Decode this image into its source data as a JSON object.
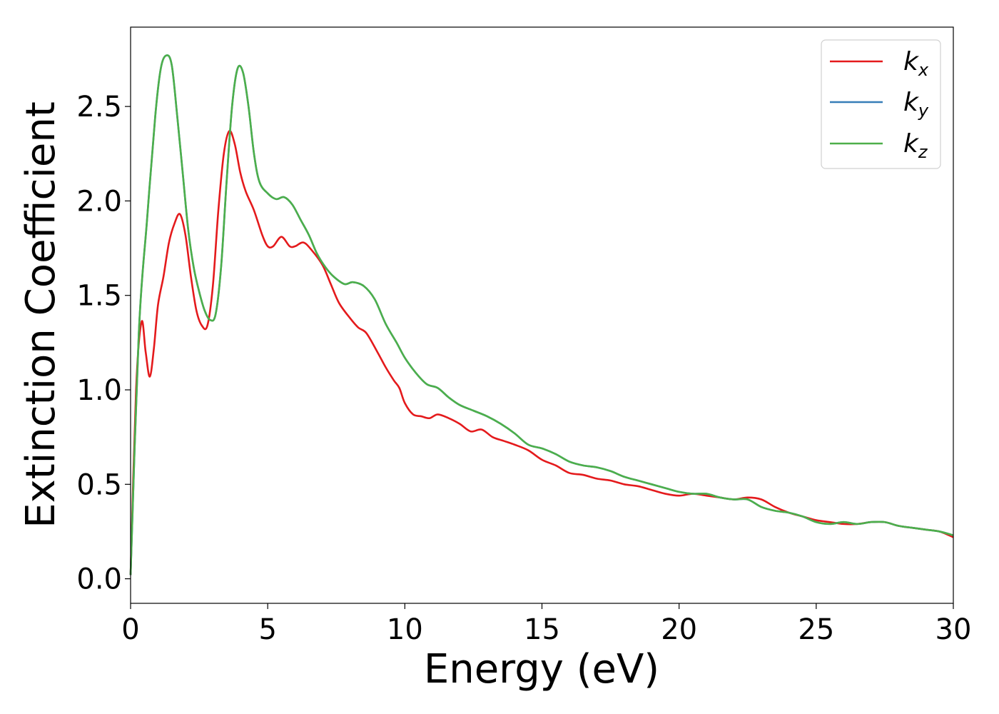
{
  "chart_data": {
    "type": "line",
    "title": "",
    "xlabel": "Energy (eV)",
    "ylabel": "Extinction Coefficient",
    "xlim": [
      0,
      30
    ],
    "ylim": [
      -0.13,
      2.92
    ],
    "xticks": [
      0,
      5,
      10,
      15,
      20,
      25,
      30
    ],
    "xtick_labels": [
      "0",
      "5",
      "10",
      "15",
      "20",
      "25",
      "30"
    ],
    "yticks": [
      0.0,
      0.5,
      1.0,
      1.5,
      2.0,
      2.5
    ],
    "ytick_labels": [
      "0.0",
      "0.5",
      "1.0",
      "1.5",
      "2.0",
      "2.5"
    ],
    "grid": false,
    "legend_position": "top-right",
    "series": [
      {
        "name": "k",
        "subscript": "x",
        "color": "#e41a1c",
        "x": [
          0,
          0.2,
          0.4,
          0.55,
          0.7,
          0.85,
          1.0,
          1.2,
          1.4,
          1.6,
          1.8,
          2.0,
          2.2,
          2.4,
          2.6,
          2.8,
          3.0,
          3.2,
          3.4,
          3.6,
          3.8,
          4.0,
          4.2,
          4.5,
          4.8,
          5.0,
          5.2,
          5.5,
          5.8,
          6.0,
          6.3,
          6.6,
          7.0,
          7.3,
          7.6,
          8.0,
          8.3,
          8.6,
          9.0,
          9.3,
          9.6,
          9.8,
          10.0,
          10.3,
          10.6,
          10.9,
          11.2,
          11.6,
          12.0,
          12.4,
          12.8,
          13.2,
          13.6,
          14.0,
          14.5,
          15.0,
          15.5,
          16.0,
          16.5,
          17.0,
          17.5,
          18.0,
          18.5,
          19.0,
          19.5,
          20.0,
          20.5,
          21.0,
          21.5,
          22.0,
          22.5,
          23.0,
          23.5,
          24.0,
          24.5,
          25.0,
          25.5,
          26.0,
          26.5,
          27.0,
          27.5,
          28.0,
          28.5,
          29.0,
          29.5,
          30.0
        ],
        "y": [
          0.02,
          1.0,
          1.36,
          1.2,
          1.07,
          1.22,
          1.45,
          1.6,
          1.78,
          1.88,
          1.93,
          1.82,
          1.6,
          1.42,
          1.34,
          1.34,
          1.55,
          1.95,
          2.25,
          2.37,
          2.3,
          2.15,
          2.05,
          1.95,
          1.82,
          1.76,
          1.76,
          1.81,
          1.76,
          1.76,
          1.78,
          1.74,
          1.66,
          1.56,
          1.46,
          1.38,
          1.33,
          1.3,
          1.2,
          1.12,
          1.05,
          1.01,
          0.93,
          0.87,
          0.86,
          0.85,
          0.87,
          0.85,
          0.82,
          0.78,
          0.79,
          0.75,
          0.73,
          0.71,
          0.68,
          0.63,
          0.6,
          0.56,
          0.55,
          0.53,
          0.52,
          0.5,
          0.49,
          0.47,
          0.45,
          0.44,
          0.45,
          0.44,
          0.43,
          0.42,
          0.43,
          0.42,
          0.38,
          0.35,
          0.33,
          0.31,
          0.3,
          0.29,
          0.29,
          0.3,
          0.3,
          0.28,
          0.27,
          0.26,
          0.25,
          0.22
        ]
      },
      {
        "name": "k",
        "subscript": "y",
        "color": "#377eb8",
        "x": [
          0,
          0.3,
          0.6,
          0.9,
          1.1,
          1.3,
          1.5,
          1.7,
          1.9,
          2.1,
          2.3,
          2.5,
          2.7,
          2.9,
          3.1,
          3.3,
          3.5,
          3.7,
          3.9,
          4.1,
          4.3,
          4.5,
          4.7,
          5.0,
          5.3,
          5.6,
          5.9,
          6.2,
          6.5,
          6.8,
          7.1,
          7.4,
          7.8,
          8.1,
          8.5,
          8.9,
          9.3,
          9.7,
          10.0,
          10.4,
          10.8,
          11.2,
          11.6,
          12.0,
          12.5,
          13.0,
          13.5,
          14.0,
          14.5,
          15.0,
          15.5,
          16.0,
          16.5,
          17.0,
          17.5,
          18.0,
          18.5,
          19.0,
          19.5,
          20.0,
          20.5,
          21.0,
          21.5,
          22.0,
          22.5,
          23.0,
          23.5,
          24.0,
          24.5,
          25.0,
          25.5,
          26.0,
          26.5,
          27.0,
          27.5,
          28.0,
          28.5,
          29.0,
          29.5,
          30.0
        ],
        "y": [
          0.02,
          1.3,
          1.9,
          2.45,
          2.7,
          2.77,
          2.72,
          2.45,
          2.15,
          1.85,
          1.65,
          1.52,
          1.42,
          1.37,
          1.4,
          1.65,
          2.1,
          2.5,
          2.7,
          2.68,
          2.5,
          2.25,
          2.1,
          2.04,
          2.01,
          2.02,
          1.98,
          1.9,
          1.82,
          1.72,
          1.65,
          1.6,
          1.56,
          1.57,
          1.55,
          1.48,
          1.35,
          1.25,
          1.17,
          1.09,
          1.03,
          1.01,
          0.96,
          0.92,
          0.89,
          0.86,
          0.82,
          0.77,
          0.71,
          0.69,
          0.66,
          0.62,
          0.6,
          0.59,
          0.57,
          0.54,
          0.52,
          0.5,
          0.48,
          0.46,
          0.45,
          0.45,
          0.43,
          0.42,
          0.42,
          0.38,
          0.36,
          0.35,
          0.33,
          0.3,
          0.29,
          0.3,
          0.29,
          0.3,
          0.3,
          0.28,
          0.27,
          0.26,
          0.25,
          0.23
        ]
      },
      {
        "name": "k",
        "subscript": "z",
        "color": "#4daf4a",
        "x": [
          0,
          0.3,
          0.6,
          0.9,
          1.1,
          1.3,
          1.5,
          1.7,
          1.9,
          2.1,
          2.3,
          2.5,
          2.7,
          2.9,
          3.1,
          3.3,
          3.5,
          3.7,
          3.9,
          4.1,
          4.3,
          4.5,
          4.7,
          5.0,
          5.3,
          5.6,
          5.9,
          6.2,
          6.5,
          6.8,
          7.1,
          7.4,
          7.8,
          8.1,
          8.5,
          8.9,
          9.3,
          9.7,
          10.0,
          10.4,
          10.8,
          11.2,
          11.6,
          12.0,
          12.5,
          13.0,
          13.5,
          14.0,
          14.5,
          15.0,
          15.5,
          16.0,
          16.5,
          17.0,
          17.5,
          18.0,
          18.5,
          19.0,
          19.5,
          20.0,
          20.5,
          21.0,
          21.5,
          22.0,
          22.5,
          23.0,
          23.5,
          24.0,
          24.5,
          25.0,
          25.5,
          26.0,
          26.5,
          27.0,
          27.5,
          28.0,
          28.5,
          29.0,
          29.5,
          30.0
        ],
        "y": [
          0.02,
          1.3,
          1.9,
          2.45,
          2.7,
          2.77,
          2.72,
          2.45,
          2.15,
          1.85,
          1.65,
          1.52,
          1.42,
          1.37,
          1.4,
          1.65,
          2.1,
          2.5,
          2.7,
          2.68,
          2.5,
          2.25,
          2.1,
          2.04,
          2.01,
          2.02,
          1.98,
          1.9,
          1.82,
          1.72,
          1.65,
          1.6,
          1.56,
          1.57,
          1.55,
          1.48,
          1.35,
          1.25,
          1.17,
          1.09,
          1.03,
          1.01,
          0.96,
          0.92,
          0.89,
          0.86,
          0.82,
          0.77,
          0.71,
          0.69,
          0.66,
          0.62,
          0.6,
          0.59,
          0.57,
          0.54,
          0.52,
          0.5,
          0.48,
          0.46,
          0.45,
          0.45,
          0.43,
          0.42,
          0.42,
          0.38,
          0.36,
          0.35,
          0.33,
          0.3,
          0.29,
          0.3,
          0.29,
          0.3,
          0.3,
          0.28,
          0.27,
          0.26,
          0.25,
          0.23
        ]
      }
    ]
  }
}
